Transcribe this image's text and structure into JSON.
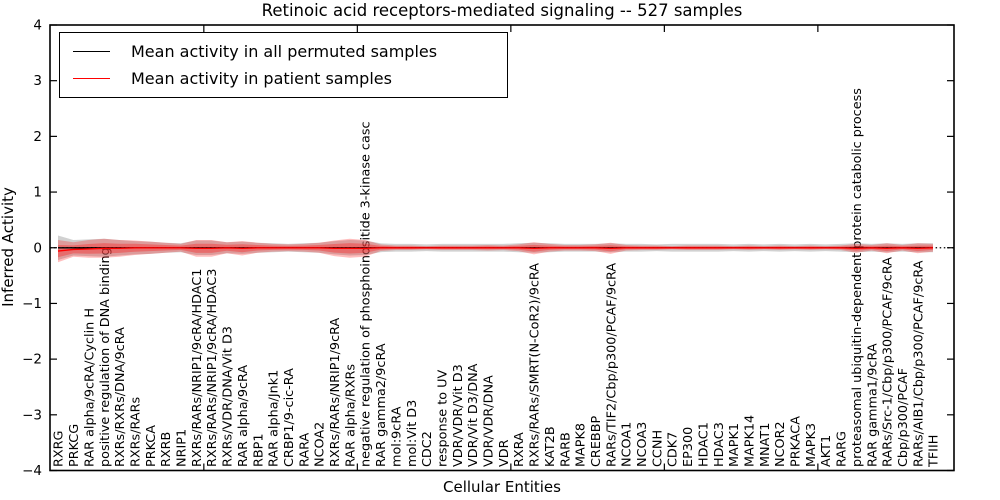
{
  "chart_data": {
    "type": "line",
    "title": "Retinoic acid receptors-mediated signaling -- 527 samples",
    "xlabel": "Cellular Entities",
    "ylabel": "Inferred Activity",
    "ylim": [
      -4,
      4
    ],
    "yticks": [
      4,
      3,
      2,
      1,
      0,
      -1,
      -2,
      -3,
      -4
    ],
    "xticks": [
      10,
      20,
      30,
      40,
      50
    ],
    "grid": false,
    "legend_position": "upper left",
    "zero_line": {
      "style": "dotted",
      "color": "#000000",
      "y": 0
    },
    "band_colors": {
      "permuted": "#999999",
      "patient": "#ff0000"
    },
    "categories": [
      "RXRG",
      "PRKCG",
      "RAR alpha/9cRA/Cyclin H",
      "positive regulation of DNA binding",
      "RXRs/RXRs/DNA/9cRA",
      "RXRs/RARs",
      "PRKCA",
      "RXRB",
      "NRIP1",
      "RXRs/RARs/NRIP1/9cRA/HDAC1",
      "RXRs/RARs/NRIP1/9cRA/HDAC3",
      "RXRs/VDR/DNA/Vit D3",
      "RAR alpha/9cRA",
      "RBP1",
      "RAR alpha/Jnk1",
      "CRBP1/9-cic-RA",
      "RARA",
      "NCOA2",
      "RXRs/RARs/NRIP1/9cRA",
      "RAR alpha/RXRs",
      "negative regulation of phosphoinositide 3-kinase casc",
      "RAR gamma2/9cRA",
      "mol:9cRA",
      "mol:Vit D3",
      "CDC2",
      "response to UV",
      "VDR/VDR/Vit D3",
      "VDR/Vit D3/DNA",
      "VDR/VDR/DNA",
      "VDR",
      "RXRA",
      "RXRs/RARs/SMRT(N-CoR2)/9cRA",
      "KAT2B",
      "RARB",
      "MAPK8",
      "CREBBP",
      "RARs/TIF2/Cbp/p300/PCAF/9cRA",
      "NCOA1",
      "NCOA3",
      "CCNH",
      "CDK7",
      "EP300",
      "HDAC1",
      "HDAC3",
      "MAPK1",
      "MAPK14",
      "MNAT1",
      "NCOR2",
      "PRKACA",
      "MAPK3",
      "AKT1",
      "RARG",
      "proteasomal ubiquitin-dependent protein catabolic process",
      "RAR gamma1/9cRA",
      "RARs/Src-1/Cbp/p300/PCAF/9cRA",
      "Cbp/p300/PCAF",
      "RARs/AIB1/Cbp/p300/PCAF/9cRA",
      "TFIIH"
    ],
    "series": [
      {
        "name": "Mean activity in all permuted samples",
        "color": "#000000",
        "mean": [
          0,
          0,
          0,
          0,
          0,
          0,
          0,
          0,
          0,
          0,
          0,
          0,
          0,
          0,
          0,
          0,
          0,
          0,
          0,
          0,
          0,
          0,
          0,
          0,
          0,
          0,
          0,
          0,
          0,
          0,
          0,
          0,
          0,
          0,
          0,
          0,
          0,
          0,
          0,
          0,
          0,
          0,
          0,
          0,
          0,
          0,
          0,
          0,
          0,
          0,
          0,
          0,
          0,
          0,
          0,
          0,
          0,
          0
        ],
        "std": [
          0.22,
          0.14,
          0.15,
          0.16,
          0.14,
          0.12,
          0.11,
          0.09,
          0.08,
          0.13,
          0.13,
          0.1,
          0.11,
          0.09,
          0.08,
          0.07,
          0.08,
          0.09,
          0.12,
          0.14,
          0.13,
          0.08,
          0.07,
          0.07,
          0.06,
          0.07,
          0.07,
          0.07,
          0.07,
          0.07,
          0.08,
          0.09,
          0.08,
          0.07,
          0.07,
          0.07,
          0.08,
          0.07,
          0.07,
          0.06,
          0.07,
          0.07,
          0.07,
          0.07,
          0.06,
          0.07,
          0.06,
          0.07,
          0.06,
          0.07,
          0.06,
          0.07,
          0.08,
          0.07,
          0.08,
          0.07,
          0.08,
          0.08
        ]
      },
      {
        "name": "Mean activity in patient samples",
        "color": "#ff0000",
        "mean": [
          -0.06,
          -0.03,
          -0.02,
          -0.01,
          -0.01,
          0,
          0,
          0,
          0,
          -0.01,
          -0.01,
          0,
          -0.01,
          0,
          0,
          0,
          0,
          0,
          -0.01,
          -0.01,
          -0.01,
          0,
          0,
          0,
          0,
          0,
          0,
          0,
          0,
          0,
          0,
          -0.01,
          0,
          0,
          0,
          0,
          -0.01,
          0,
          0,
          0,
          0,
          0,
          0,
          0,
          0,
          0,
          0,
          0,
          0,
          0,
          0,
          0,
          -0.01,
          0,
          -0.01,
          0,
          -0.01,
          0
        ],
        "std": [
          0.2,
          0.13,
          0.16,
          0.17,
          0.15,
          0.13,
          0.11,
          0.09,
          0.07,
          0.15,
          0.15,
          0.1,
          0.13,
          0.09,
          0.07,
          0.06,
          0.07,
          0.09,
          0.14,
          0.17,
          0.15,
          0.06,
          0.04,
          0.04,
          0.03,
          0.04,
          0.04,
          0.04,
          0.05,
          0.04,
          0.06,
          0.11,
          0.07,
          0.05,
          0.05,
          0.06,
          0.1,
          0.05,
          0.04,
          0.04,
          0.03,
          0.04,
          0.04,
          0.04,
          0.03,
          0.04,
          0.03,
          0.04,
          0.03,
          0.04,
          0.03,
          0.04,
          0.08,
          0.05,
          0.09,
          0.05,
          0.09,
          0.07
        ]
      }
    ]
  },
  "legend": {
    "items": [
      {
        "label": "Mean activity in all permuted samples"
      },
      {
        "label": "Mean activity in patient samples"
      }
    ]
  }
}
